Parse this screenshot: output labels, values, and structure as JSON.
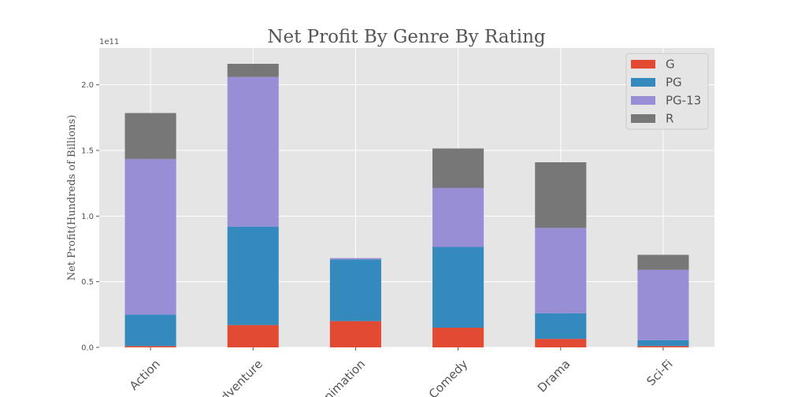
{
  "chart_data": {
    "type": "bar",
    "stacked": true,
    "title": "Net Profit By Genre By Rating",
    "xlabel": "",
    "ylabel": "Net Profit(Hundreds of Billions)",
    "y_offset_label": "1e11",
    "categories": [
      "Action",
      "Adventure",
      "Animation",
      "Comedy",
      "Drama",
      "Sci-Fi"
    ],
    "ylim": [
      0,
      2.28
    ],
    "yticks": [
      0.0,
      0.5,
      1.0,
      1.5,
      2.0
    ],
    "ytick_labels": [
      "0.0",
      "0.5",
      "1.0",
      "1.5",
      "2.0"
    ],
    "grid": true,
    "legend_position": "top-right",
    "series": [
      {
        "name": "G",
        "color": "#E24A33",
        "values": [
          0.01,
          0.17,
          0.2,
          0.15,
          0.065,
          0.01
        ]
      },
      {
        "name": "PG",
        "color": "#348ABD",
        "values": [
          0.24,
          0.75,
          0.47,
          0.615,
          0.195,
          0.045
        ]
      },
      {
        "name": "PG-13",
        "color": "#988ED5",
        "values": [
          1.185,
          1.14,
          0.01,
          0.45,
          0.65,
          0.535
        ]
      },
      {
        "name": "R",
        "color": "#777777",
        "values": [
          0.35,
          0.1,
          0.0,
          0.3,
          0.5,
          0.115
        ]
      }
    ]
  }
}
